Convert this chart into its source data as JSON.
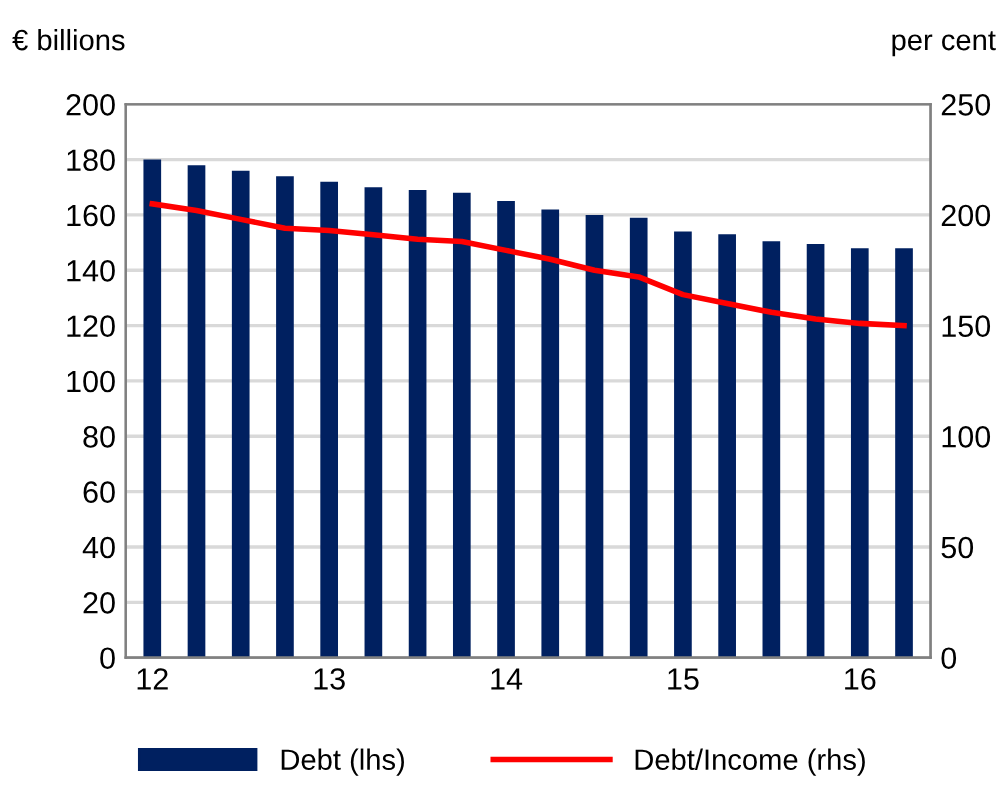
{
  "chart_data": {
    "type": "bar",
    "ylabel": "€ billions",
    "y2label": "per cent",
    "categories": [
      "12",
      null,
      null,
      null,
      "13",
      null,
      null,
      null,
      "14",
      null,
      null,
      null,
      "15",
      null,
      null,
      null,
      "16",
      null
    ],
    "series": [
      {
        "name": "Debt (lhs)",
        "color": "#002060",
        "values": [
          180,
          178,
          176,
          174,
          172,
          170,
          169,
          168,
          165,
          162,
          160,
          159,
          154,
          153,
          150.5,
          149.5,
          148,
          148
        ]
      },
      {
        "name": "Debt/Income (rhs)",
        "type": "line",
        "axis": "y2",
        "color": "#ff0000",
        "values": [
          205,
          202,
          198,
          194,
          193,
          191,
          189,
          188,
          184,
          180,
          175,
          172,
          164,
          160,
          156,
          153,
          151,
          150
        ]
      }
    ],
    "ylim": [
      0,
      200
    ],
    "yticks": [
      0,
      20,
      40,
      60,
      80,
      100,
      120,
      140,
      160,
      180,
      200
    ],
    "y2lim": [
      0,
      250
    ],
    "y2ticks": [
      0,
      50,
      100,
      150,
      200,
      250
    ],
    "grid": "y",
    "legend": "bottom",
    "marker": "none",
    "line_style": "solid"
  }
}
